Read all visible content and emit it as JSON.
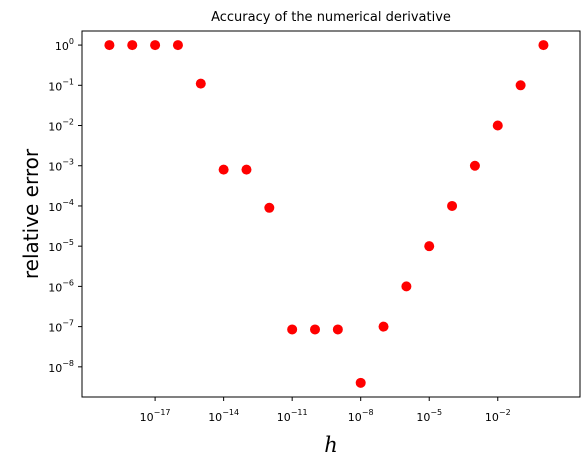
{
  "chart_data": {
    "type": "scatter",
    "title": "Accuracy of the numerical derivative",
    "xlabel": "h",
    "ylabel": "relative error",
    "xscale": "log",
    "yscale": "log",
    "xlim_exp": [
      -20.2,
      1.6
    ],
    "ylim_exp": [
      -8.75,
      0.35
    ],
    "grid": false,
    "legend": "none",
    "marker_color": "#ff0000",
    "x_ticks": [
      {
        "base": "10",
        "exp": "−17",
        "value_exp": -17
      },
      {
        "base": "10",
        "exp": "−14",
        "value_exp": -14
      },
      {
        "base": "10",
        "exp": "−11",
        "value_exp": -11
      },
      {
        "base": "10",
        "exp": "−8",
        "value_exp": -8
      },
      {
        "base": "10",
        "exp": "−5",
        "value_exp": -5
      },
      {
        "base": "10",
        "exp": "−2",
        "value_exp": -2
      }
    ],
    "y_ticks": [
      {
        "base": "10",
        "exp": "0",
        "value_exp": 0
      },
      {
        "base": "10",
        "exp": "−1",
        "value_exp": -1
      },
      {
        "base": "10",
        "exp": "−2",
        "value_exp": -2
      },
      {
        "base": "10",
        "exp": "−3",
        "value_exp": -3
      },
      {
        "base": "10",
        "exp": "−4",
        "value_exp": -4
      },
      {
        "base": "10",
        "exp": "−5",
        "value_exp": -5
      },
      {
        "base": "10",
        "exp": "−6",
        "value_exp": -6
      },
      {
        "base": "10",
        "exp": "−7",
        "value_exp": -7
      },
      {
        "base": "10",
        "exp": "−8",
        "value_exp": -8
      }
    ],
    "points": [
      {
        "h": 1e-19,
        "error": 1.0
      },
      {
        "h": 1e-18,
        "error": 1.0
      },
      {
        "h": 1e-17,
        "error": 1.0
      },
      {
        "h": 1e-16,
        "error": 1.0
      },
      {
        "h": 1e-15,
        "error": 0.11
      },
      {
        "h": 1e-14,
        "error": 0.0008
      },
      {
        "h": 1e-13,
        "error": 0.0008
      },
      {
        "h": 1e-12,
        "error": 9e-05
      },
      {
        "h": 1e-11,
        "error": 8.5e-08
      },
      {
        "h": 1e-10,
        "error": 8.5e-08
      },
      {
        "h": 1e-09,
        "error": 8.5e-08
      },
      {
        "h": 1e-08,
        "error": 4e-09
      },
      {
        "h": 1e-07,
        "error": 1e-07
      },
      {
        "h": 1e-06,
        "error": 1e-06
      },
      {
        "h": 1e-05,
        "error": 1e-05
      },
      {
        "h": 0.0001,
        "error": 0.0001
      },
      {
        "h": 0.001,
        "error": 0.001
      },
      {
        "h": 0.01,
        "error": 0.01
      },
      {
        "h": 0.1,
        "error": 0.1
      },
      {
        "h": 1.0,
        "error": 1.0
      }
    ]
  }
}
